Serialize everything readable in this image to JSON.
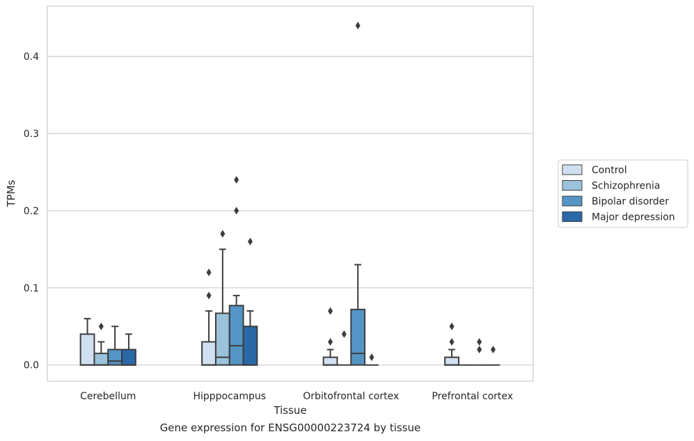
{
  "caption": "Gene expression for ENSG00000223724 by tissue",
  "chart_data": {
    "type": "boxplot",
    "xlabel": "Tissue",
    "ylabel": "TPMs",
    "ylim": [
      -0.021,
      0.465
    ],
    "yticks": [
      0.0,
      0.1,
      0.2,
      0.3,
      0.4
    ],
    "ytick_labels": [
      "0.0",
      "0.1",
      "0.2",
      "0.3",
      "0.4"
    ],
    "grid": "horizontal",
    "legend_position": "right",
    "categories": [
      "Cerebellum",
      "Hipppocampus",
      "Orbitofrontal cortex",
      "Prefrontal cortex"
    ],
    "series": [
      {
        "name": "Control",
        "color": "#d1e0f0",
        "boxes": [
          {
            "q1": 0.0,
            "median": 0.0,
            "q3": 0.04,
            "whisker_low": 0.0,
            "whisker_high": 0.06,
            "outliers": []
          },
          {
            "q1": 0.0,
            "median": 0.0,
            "q3": 0.03,
            "whisker_low": 0.0,
            "whisker_high": 0.07,
            "outliers": [
              0.09,
              0.12
            ]
          },
          {
            "q1": 0.0,
            "median": 0.0,
            "q3": 0.01,
            "whisker_low": 0.0,
            "whisker_high": 0.02,
            "outliers": [
              0.03,
              0.07
            ]
          },
          {
            "q1": 0.0,
            "median": 0.0,
            "q3": 0.01,
            "whisker_low": 0.0,
            "whisker_high": 0.02,
            "outliers": [
              0.03,
              0.05
            ]
          }
        ]
      },
      {
        "name": "Schizophrenia",
        "color": "#9ac2db",
        "boxes": [
          {
            "q1": 0.0,
            "median": 0.0,
            "q3": 0.015,
            "whisker_low": 0.0,
            "whisker_high": 0.03,
            "outliers": [
              0.05
            ]
          },
          {
            "q1": 0.0,
            "median": 0.01,
            "q3": 0.067,
            "whisker_low": 0.0,
            "whisker_high": 0.15,
            "outliers": [
              0.17
            ]
          },
          {
            "q1": 0.0,
            "median": 0.0,
            "q3": 0.0,
            "whisker_low": 0.0,
            "whisker_high": 0.0,
            "outliers": [
              0.04
            ]
          },
          {
            "q1": 0.0,
            "median": 0.0,
            "q3": 0.0,
            "whisker_low": 0.0,
            "whisker_high": 0.0,
            "outliers": []
          }
        ]
      },
      {
        "name": "Bipolar disorder",
        "color": "#5495c5",
        "boxes": [
          {
            "q1": 0.0,
            "median": 0.005,
            "q3": 0.02,
            "whisker_low": 0.0,
            "whisker_high": 0.05,
            "outliers": []
          },
          {
            "q1": 0.0,
            "median": 0.025,
            "q3": 0.077,
            "whisker_low": 0.0,
            "whisker_high": 0.09,
            "outliers": [
              0.2,
              0.24
            ]
          },
          {
            "q1": 0.0,
            "median": 0.015,
            "q3": 0.072,
            "whisker_low": 0.0,
            "whisker_high": 0.13,
            "outliers": [
              0.44
            ]
          },
          {
            "q1": 0.0,
            "median": 0.0,
            "q3": 0.0,
            "whisker_low": 0.0,
            "whisker_high": 0.0,
            "outliers": [
              0.02,
              0.03
            ]
          }
        ]
      },
      {
        "name": "Major depression",
        "color": "#2a68a8",
        "boxes": [
          {
            "q1": 0.0,
            "median": 0.0,
            "q3": 0.02,
            "whisker_low": 0.0,
            "whisker_high": 0.04,
            "outliers": []
          },
          {
            "q1": 0.0,
            "median": 0.0,
            "q3": 0.05,
            "whisker_low": 0.0,
            "whisker_high": 0.07,
            "outliers": [
              0.16
            ]
          },
          {
            "q1": 0.0,
            "median": 0.0,
            "q3": 0.0,
            "whisker_low": 0.0,
            "whisker_high": 0.0,
            "outliers": [
              0.01
            ]
          },
          {
            "q1": 0.0,
            "median": 0.0,
            "q3": 0.0,
            "whisker_low": 0.0,
            "whisker_high": 0.0,
            "outliers": [
              0.02
            ]
          }
        ]
      }
    ]
  }
}
